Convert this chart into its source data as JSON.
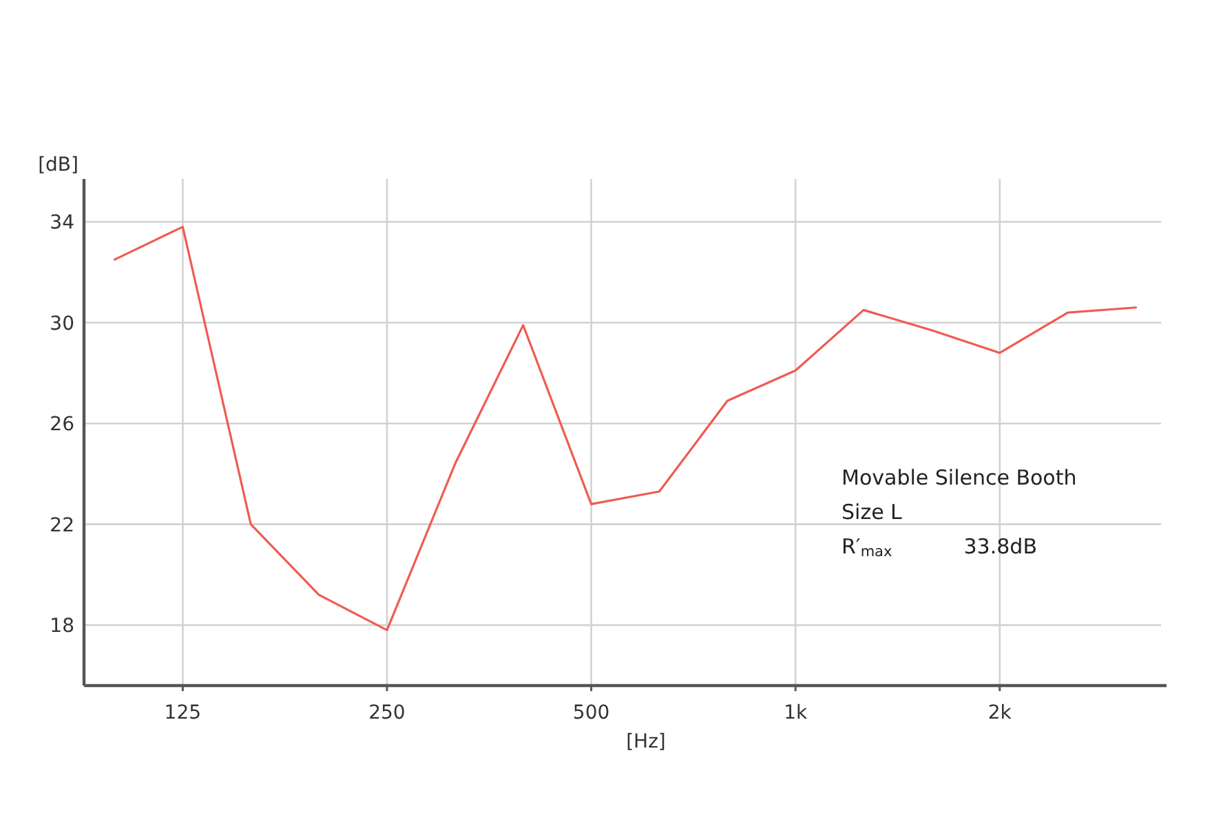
{
  "chart_data": {
    "type": "line",
    "ylabel": "[dB]",
    "xlabel": "[Hz]",
    "categories": [
      null,
      "125",
      null,
      null,
      "250",
      null,
      null,
      "500",
      null,
      null,
      "1k",
      null,
      null,
      "2k",
      null,
      null
    ],
    "series": [
      {
        "color": "#ef5b52",
        "values": [
          32.5,
          33.8,
          22.0,
          19.2,
          17.8,
          24.4,
          29.9,
          22.8,
          23.3,
          26.9,
          28.1,
          30.5,
          29.7,
          28.8,
          30.4,
          30.6
        ]
      }
    ],
    "ylim": [
      15.6,
      35.7
    ],
    "yticks": [
      18,
      22,
      26,
      30,
      34
    ],
    "grid": true,
    "annotations": [
      "Movable Silence Booth",
      "Size L",
      "R′$_{max}$\t33.8dB"
    ]
  }
}
